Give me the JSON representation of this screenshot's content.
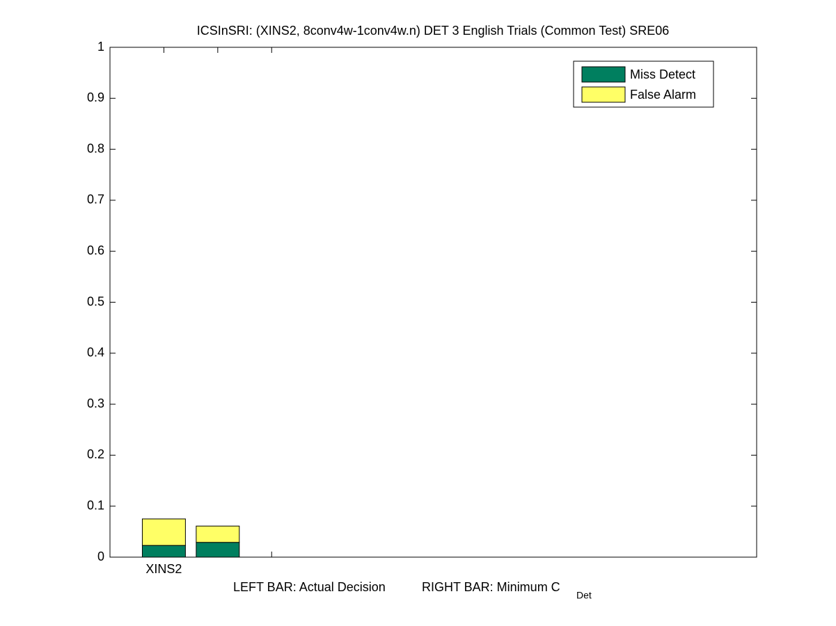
{
  "chart_data": {
    "type": "stacked_bar",
    "title": "ICSInSRI: (XINS2, 8conv4w-1conv4w.n) DET 3 English Trials (Common Test) SRE06",
    "x_label": "LEFT BAR: Actual Decision",
    "x_label_2": "RIGHT BAR: Minimum C",
    "x_label_sub": "Det",
    "categories": [
      "XINS2",
      null,
      null
    ],
    "xlim": [
      0,
      12
    ],
    "series": [
      {
        "name": "Miss Detect",
        "color": "#007f5f",
        "values": [
          0.023,
          0.029,
          null
        ]
      },
      {
        "name": "False Alarm",
        "color": "#ffff66",
        "values": [
          0.052,
          0.032,
          null
        ]
      }
    ],
    "ylim": [
      0,
      1
    ],
    "yticks": [
      0,
      0.1,
      0.2,
      0.3,
      0.4,
      0.5,
      0.6,
      0.7,
      0.8,
      0.9,
      1
    ],
    "legend": "upper-right",
    "grid": false
  }
}
